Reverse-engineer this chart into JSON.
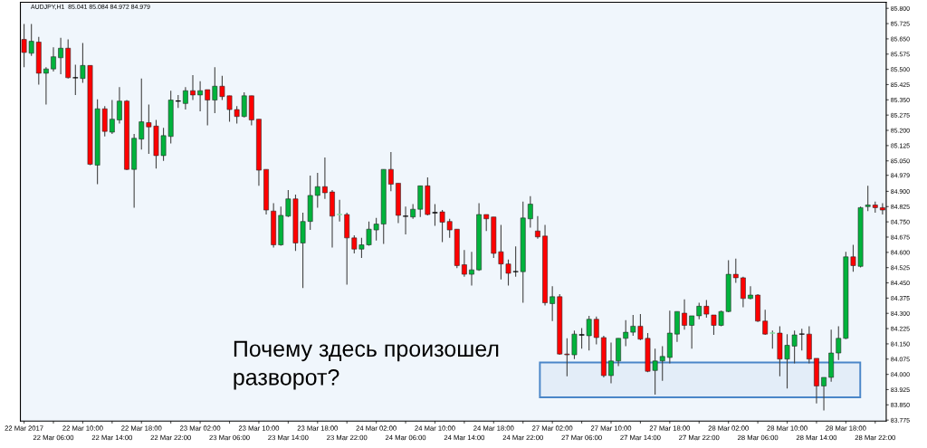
{
  "chart_data": {
    "type": "candlestick",
    "title": "AUDJPY,H1  85.041 85.084 84.972 84.979",
    "categories": [
      "22 Mar 2017",
      null,
      null,
      null,
      "22 Mar 06:00",
      null,
      null,
      null,
      "22 Mar 10:00",
      null,
      null,
      null,
      "22 Mar 14:00",
      null,
      null,
      null,
      "22 Mar 18:00",
      null,
      null,
      null,
      "22 Mar 22:00",
      null,
      null,
      null,
      "23 Mar 02:00",
      null,
      null,
      null,
      "23 Mar 06:00",
      null,
      null,
      null,
      "23 Mar 10:00",
      null,
      null,
      null,
      "23 Mar 14:00",
      null,
      null,
      null,
      "23 Mar 18:00",
      null,
      null,
      null,
      "23 Mar 22:00",
      null,
      null,
      null,
      "24 Mar 02:00",
      null,
      null,
      null,
      "24 Mar 06:00",
      null,
      null,
      null,
      "24 Mar 10:00",
      null,
      null,
      null,
      "24 Mar 14:00",
      null,
      null,
      null,
      "24 Mar 18:00",
      null,
      null,
      null,
      "24 Mar 22:00",
      null,
      null,
      null,
      "27 Mar 02:00",
      null,
      null,
      null,
      "27 Mar 06:00",
      null,
      null,
      null,
      "27 Mar 10:00",
      null,
      null,
      null,
      "27 Mar 14:00",
      null,
      null,
      null,
      "27 Mar 18:00",
      null,
      null,
      null,
      "27 Mar 22:00",
      null,
      null,
      null,
      "28 Mar 02:00",
      null,
      null,
      null,
      "28 Mar 06:00",
      null,
      null,
      null,
      "28 Mar 10:00",
      null,
      null,
      null,
      "28 Mar 14:00",
      null,
      null,
      null,
      "28 Mar 18:00",
      null,
      null,
      null,
      "28 Mar 22:00",
      null
    ],
    "ohlc": [
      [
        85.647,
        85.723,
        85.51,
        85.583
      ],
      [
        85.579,
        85.723,
        85.566,
        85.638
      ],
      [
        85.634,
        85.66,
        85.425,
        85.481
      ],
      [
        85.481,
        85.51,
        85.327,
        85.502
      ],
      [
        85.502,
        85.608,
        85.489,
        85.562
      ],
      [
        85.557,
        85.655,
        85.476,
        85.604
      ],
      [
        85.604,
        85.647,
        85.455,
        85.459
      ],
      [
        85.459,
        85.523,
        85.374,
        85.459
      ],
      [
        85.455,
        85.63,
        85.434,
        85.519
      ],
      [
        85.519,
        85.519,
        85.029,
        85.033
      ],
      [
        85.029,
        85.353,
        84.935,
        85.306
      ],
      [
        85.306,
        85.319,
        85.17,
        85.195
      ],
      [
        85.191,
        85.349,
        85.182,
        85.255
      ],
      [
        85.251,
        85.413,
        85.234,
        85.344
      ],
      [
        85.344,
        85.349,
        85.004,
        85.008
      ],
      [
        85.008,
        85.182,
        84.82,
        85.161
      ],
      [
        85.157,
        85.455,
        85.106,
        85.242
      ],
      [
        85.238,
        85.327,
        85.084,
        85.217
      ],
      [
        85.221,
        85.251,
        85.012,
        85.076
      ],
      [
        85.076,
        85.212,
        85.05,
        85.174
      ],
      [
        85.17,
        85.395,
        85.136,
        85.349
      ],
      [
        85.344,
        85.374,
        85.31,
        85.344
      ],
      [
        85.332,
        85.413,
        85.302,
        85.395
      ],
      [
        85.395,
        85.472,
        85.349,
        85.374
      ],
      [
        85.374,
        85.442,
        85.293,
        85.395
      ],
      [
        85.4,
        85.4,
        85.225,
        85.349
      ],
      [
        85.349,
        85.51,
        85.285,
        85.417
      ],
      [
        85.417,
        85.468,
        85.349,
        85.366
      ],
      [
        85.37,
        85.37,
        85.242,
        85.302
      ],
      [
        85.302,
        85.319,
        85.234,
        85.268
      ],
      [
        85.268,
        85.387,
        85.263,
        85.37
      ],
      [
        85.37,
        85.37,
        85.225,
        85.251
      ],
      [
        85.255,
        85.255,
        84.927,
        85.004
      ],
      [
        85.008,
        85.008,
        84.786,
        84.808
      ],
      [
        84.803,
        84.842,
        84.624,
        84.637
      ],
      [
        84.637,
        84.825,
        84.633,
        84.782
      ],
      [
        84.778,
        84.906,
        84.774,
        84.863
      ],
      [
        84.863,
        84.884,
        84.607,
        84.646
      ],
      [
        84.646,
        84.795,
        84.424,
        84.752
      ],
      [
        84.752,
        84.978,
        84.71,
        84.88
      ],
      [
        84.88,
        84.991,
        84.82,
        84.923
      ],
      [
        84.923,
        85.067,
        84.863,
        84.893
      ],
      [
        84.897,
        84.906,
        84.624,
        84.778
      ],
      [
        84.786,
        84.859,
        84.752,
        84.786
      ],
      [
        84.786,
        84.795,
        84.441,
        84.671
      ],
      [
        84.671,
        84.684,
        84.595,
        84.616
      ],
      [
        84.616,
        84.671,
        84.573,
        84.637
      ],
      [
        84.637,
        84.752,
        84.633,
        84.714
      ],
      [
        84.71,
        84.769,
        84.658,
        84.739
      ],
      [
        84.739,
        85.008,
        84.641,
        85.008
      ],
      [
        85.008,
        85.093,
        84.901,
        84.935
      ],
      [
        84.94,
        84.94,
        84.744,
        84.782
      ],
      [
        84.778,
        84.825,
        84.688,
        84.778
      ],
      [
        84.774,
        84.837,
        84.765,
        84.812
      ],
      [
        84.812,
        84.927,
        84.774,
        84.927
      ],
      [
        84.927,
        84.969,
        84.782,
        84.786
      ],
      [
        84.795,
        84.837,
        84.731,
        84.795
      ],
      [
        84.799,
        84.808,
        84.65,
        84.748
      ],
      [
        84.752,
        84.765,
        84.671,
        84.71
      ],
      [
        84.714,
        84.714,
        84.522,
        84.535
      ],
      [
        84.539,
        84.612,
        84.48,
        84.492
      ],
      [
        84.492,
        84.603,
        84.437,
        84.514
      ],
      [
        84.514,
        84.842,
        84.509,
        84.786
      ],
      [
        84.786,
        84.786,
        84.705,
        84.765
      ],
      [
        84.774,
        84.774,
        84.573,
        84.595
      ],
      [
        84.603,
        84.735,
        84.467,
        84.543
      ],
      [
        84.543,
        84.565,
        84.437,
        84.497
      ],
      [
        84.505,
        84.629,
        84.48,
        84.505
      ],
      [
        84.505,
        84.85,
        84.352,
        84.769
      ],
      [
        84.765,
        84.876,
        84.722,
        84.837
      ],
      [
        84.705,
        84.778,
        84.667,
        84.676
      ],
      [
        84.68,
        84.735,
        84.339,
        84.352
      ],
      [
        84.348,
        84.433,
        84.262,
        84.382
      ],
      [
        84.382,
        84.394,
        84.096,
        84.1
      ],
      [
        84.1,
        84.177,
        83.99,
        84.096
      ],
      [
        84.096,
        84.215,
        84.075,
        84.198
      ],
      [
        84.194,
        84.228,
        84.126,
        84.194
      ],
      [
        84.19,
        84.288,
        84.117,
        84.271
      ],
      [
        84.271,
        84.284,
        84.147,
        84.181
      ],
      [
        84.181,
        84.19,
        83.985,
        83.994
      ],
      [
        83.994,
        84.156,
        83.956,
        84.066
      ],
      [
        84.066,
        84.177,
        84.041,
        84.177
      ],
      [
        84.177,
        84.267,
        84.139,
        84.207
      ],
      [
        84.207,
        84.292,
        84.19,
        84.237
      ],
      [
        84.237,
        84.296,
        84.169,
        84.173
      ],
      [
        84.177,
        84.203,
        84.011,
        84.015
      ],
      [
        84.019,
        84.126,
        83.9,
        84.066
      ],
      [
        84.066,
        84.139,
        83.968,
        84.088
      ],
      [
        84.083,
        84.313,
        84.054,
        84.203
      ],
      [
        84.198,
        84.309,
        84.16,
        84.309
      ],
      [
        84.301,
        84.369,
        84.22,
        84.241
      ],
      [
        84.241,
        84.288,
        84.126,
        84.288
      ],
      [
        84.288,
        84.352,
        84.271,
        84.335
      ],
      [
        84.335,
        84.365,
        84.279,
        84.296
      ],
      [
        84.292,
        84.292,
        84.194,
        84.241
      ],
      [
        84.241,
        84.313,
        84.237,
        84.309
      ],
      [
        84.309,
        84.561,
        84.305,
        84.492
      ],
      [
        84.492,
        84.569,
        84.45,
        84.475
      ],
      [
        84.475,
        84.48,
        84.33,
        84.373
      ],
      [
        84.373,
        84.433,
        84.369,
        84.39
      ],
      [
        84.39,
        84.394,
        84.258,
        84.262
      ],
      [
        84.262,
        84.318,
        84.194,
        84.198
      ],
      [
        84.203,
        84.215,
        84.126,
        84.203
      ],
      [
        84.203,
        84.237,
        83.99,
        84.075
      ],
      [
        84.075,
        84.198,
        83.93,
        84.143
      ],
      [
        84.139,
        84.215,
        84.054,
        84.194
      ],
      [
        84.198,
        84.224,
        84.117,
        84.198
      ],
      [
        84.198,
        84.237,
        84.054,
        84.075
      ],
      [
        84.079,
        84.079,
        83.857,
        83.943
      ],
      [
        83.943,
        83.985,
        83.823,
        83.985
      ],
      [
        83.985,
        84.22,
        83.964,
        84.105
      ],
      [
        84.105,
        84.237,
        84.071,
        84.177
      ],
      [
        84.177,
        84.603,
        84.173,
        84.578
      ],
      [
        84.578,
        84.637,
        84.505,
        84.535
      ],
      [
        84.531,
        84.825,
        84.526,
        84.82
      ],
      [
        84.825,
        84.927,
        84.803,
        84.833
      ],
      [
        84.833,
        84.85,
        84.795,
        84.82
      ],
      [
        84.82,
        84.842,
        84.786,
        84.808
      ]
    ],
    "colors": [
      "#ff0000",
      "#00b33c",
      "#ff0000",
      "#00b33c",
      "#00b33c",
      "#00b33c",
      "#ff0000",
      "#000000",
      "#00b33c",
      "#ff0000",
      "#00b33c",
      "#ff0000",
      "#00b33c",
      "#00b33c",
      "#ff0000",
      "#00b33c",
      "#00b33c",
      "#ff0000",
      "#ff0000",
      "#00b33c",
      "#00b33c",
      "#000000",
      "#00b33c",
      "#ff0000",
      "#00b33c",
      "#ff0000",
      "#00b33c",
      "#ff0000",
      "#ff0000",
      "#ff0000",
      "#00b33c",
      "#ff0000",
      "#ff0000",
      "#ff0000",
      "#ff0000",
      "#00b33c",
      "#00b33c",
      "#ff0000",
      "#00b33c",
      "#00b33c",
      "#00b33c",
      "#ff0000",
      "#ff0000",
      "#7fe0a0",
      "#ff0000",
      "#ff0000",
      "#00b33c",
      "#00b33c",
      "#00b33c",
      "#00b33c",
      "#ff0000",
      "#ff0000",
      "#000000",
      "#00b33c",
      "#00b33c",
      "#ff0000",
      "#000000",
      "#ff0000",
      "#ff0000",
      "#ff0000",
      "#ff0000",
      "#00b33c",
      "#00b33c",
      "#ff0000",
      "#ff0000",
      "#ff0000",
      "#ff0000",
      "#000000",
      "#00b33c",
      "#00b33c",
      "#ff0000",
      "#ff0000",
      "#00b33c",
      "#ff0000",
      "#ff0000",
      "#00b33c",
      "#000000",
      "#00b33c",
      "#ff0000",
      "#ff0000",
      "#00b33c",
      "#00b33c",
      "#00b33c",
      "#00b33c",
      "#ff0000",
      "#ff0000",
      "#00b33c",
      "#00b33c",
      "#00b33c",
      "#00b33c",
      "#ff0000",
      "#00b33c",
      "#00b33c",
      "#ff0000",
      "#ff0000",
      "#00b33c",
      "#00b33c",
      "#ff0000",
      "#ff0000",
      "#00b33c",
      "#ff0000",
      "#ff0000",
      "#7fe0a0",
      "#ff0000",
      "#00b33c",
      "#00b33c",
      "#000000",
      "#ff0000",
      "#ff0000",
      "#00b33c",
      "#00b33c",
      "#00b33c",
      "#00b33c",
      "#ff0000",
      "#00b33c",
      "#00b33c",
      "#ff0000",
      "#ff0000"
    ],
    "ylim": [
      83.77,
      85.83
    ],
    "yticks": [
      {
        "value": 85.8,
        "label": "85.800"
      },
      {
        "value": 85.725,
        "label": "85.725"
      },
      {
        "value": 85.65,
        "label": "85.650"
      },
      {
        "value": 85.575,
        "label": "85.575"
      },
      {
        "value": 85.5,
        "label": "85.500"
      },
      {
        "value": 85.425,
        "label": "85.425"
      },
      {
        "value": 85.35,
        "label": "85.350"
      },
      {
        "value": 85.275,
        "label": "85.275"
      },
      {
        "value": 85.2,
        "label": "85.200"
      },
      {
        "value": 85.125,
        "label": "85.125"
      },
      {
        "value": 85.05,
        "label": "85.050"
      },
      {
        "value": 84.979,
        "label": "84.979"
      },
      {
        "value": 84.9,
        "label": "84.900"
      },
      {
        "value": 84.825,
        "label": "84.825"
      },
      {
        "value": 84.75,
        "label": "84.750"
      },
      {
        "value": 84.675,
        "label": "84.675"
      },
      {
        "value": 84.6,
        "label": "84.600"
      },
      {
        "value": 84.525,
        "label": "84.525"
      },
      {
        "value": 84.45,
        "label": "84.450"
      },
      {
        "value": 84.375,
        "label": "84.375"
      },
      {
        "value": 84.3,
        "label": "84.300"
      },
      {
        "value": 84.225,
        "label": "84.225"
      },
      {
        "value": 84.15,
        "label": "84.150"
      },
      {
        "value": 84.075,
        "label": "84.075"
      },
      {
        "value": 84.0,
        "label": "84.000"
      },
      {
        "value": 83.925,
        "label": "83.925"
      },
      {
        "value": 83.85,
        "label": "83.850"
      },
      {
        "value": 83.775,
        "label": "83.775"
      }
    ],
    "bands": [
      {
        "axis": "y",
        "from": 83.887,
        "to": 84.058,
        "color": "#4a86c8"
      }
    ],
    "annotations": [
      "Почему здесь произошел\nразворот?"
    ],
    "grid": false,
    "legend": false
  }
}
